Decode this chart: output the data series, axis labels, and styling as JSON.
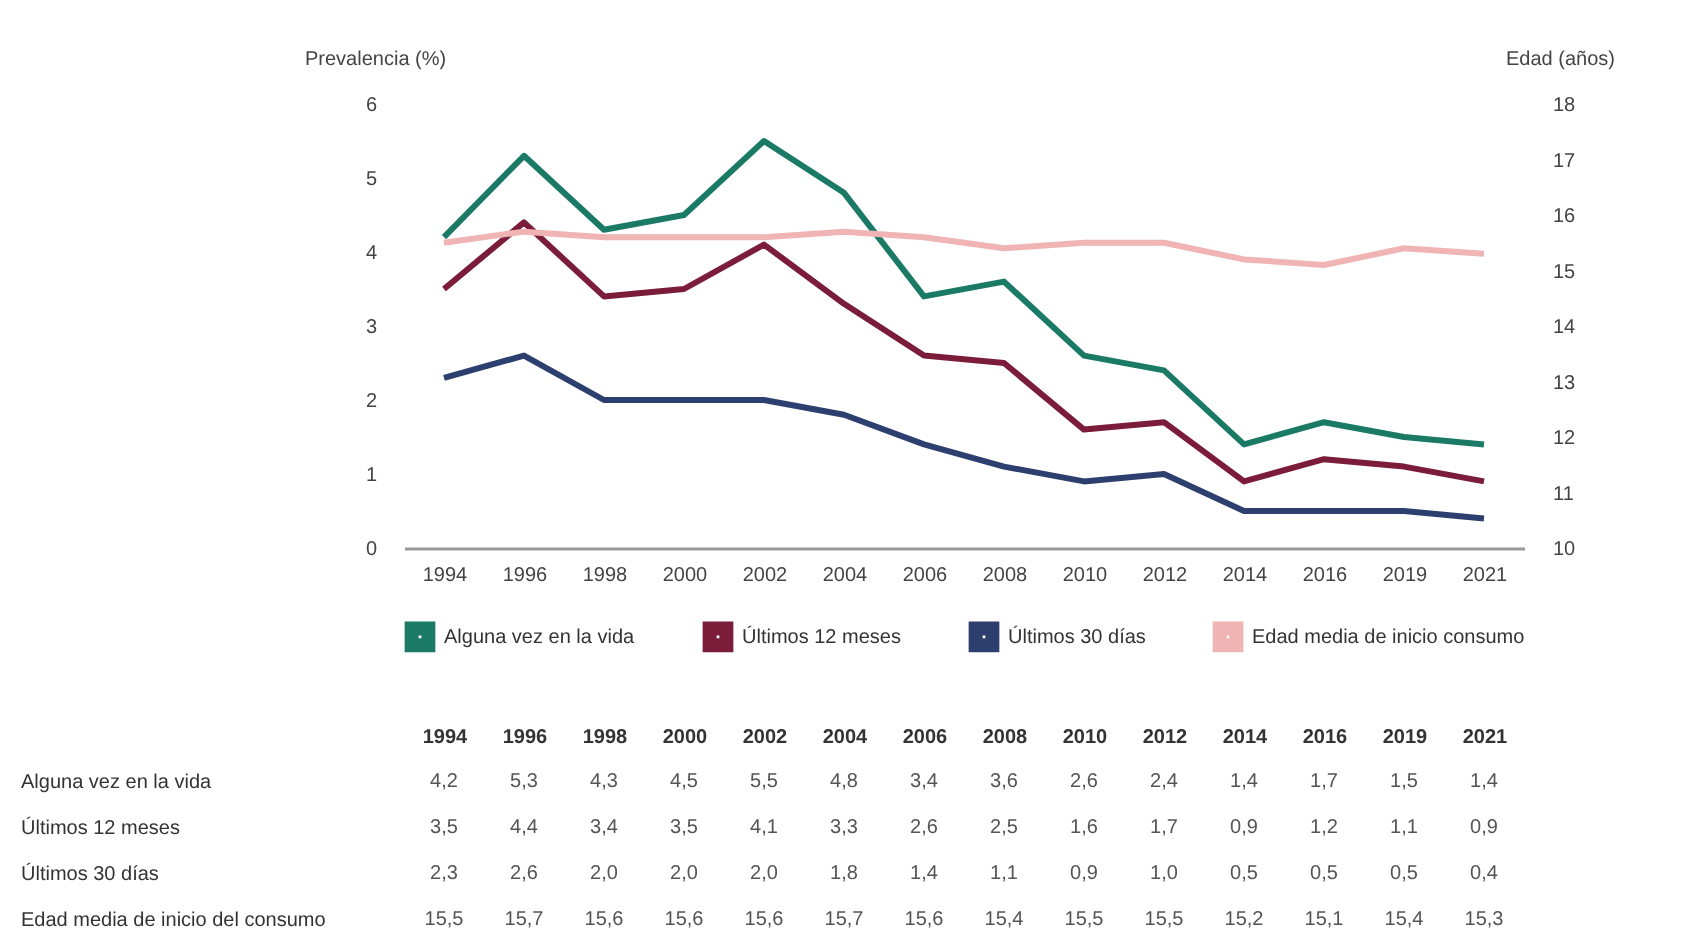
{
  "chart_data": {
    "type": "line",
    "ylabel": "Prevalencia (%)",
    "y2label": "Edad (años)",
    "categories": [
      "1994",
      "1996",
      "1998",
      "2000",
      "2002",
      "2004",
      "2006",
      "2008",
      "2010",
      "2012",
      "2014",
      "2016",
      "2019",
      "2021"
    ],
    "ylim": [
      0,
      6
    ],
    "yticks": [
      0,
      1,
      2,
      3,
      4,
      5,
      6
    ],
    "y2lim": [
      10,
      18
    ],
    "y2ticks": [
      10,
      11,
      12,
      13,
      14,
      15,
      16,
      17,
      18
    ],
    "grid": false,
    "legend": "bottom",
    "marker": "none",
    "line_style": "solid",
    "annotations": [
      "Edad media de inicio del  consumo"
    ],
    "series": [
      {
        "name": "Alguna vez en la vida",
        "color": "#1b7a66",
        "values": [
          4.2,
          5.3,
          4.3,
          4.5,
          5.5,
          4.8,
          3.4,
          3.6,
          2.6,
          2.4,
          1.4,
          1.7,
          1.5,
          1.4
        ],
        "value_labels": [
          "4,2",
          "5,3",
          "4,3",
          "4,5",
          "5,5",
          "4,8",
          "3,4",
          "3,6",
          "2,6",
          "2,4",
          "1,4",
          "1,7",
          "1,5",
          "1,4"
        ]
      },
      {
        "name": "Últimos 12 meses",
        "color": "#7a1c3a",
        "values": [
          3.5,
          4.4,
          3.4,
          3.5,
          4.1,
          3.3,
          2.6,
          2.5,
          1.6,
          1.7,
          0.9,
          1.2,
          1.1,
          0.9
        ],
        "value_labels": [
          "3,5",
          "4,4",
          "3,4",
          "3,5",
          "4,1",
          "3,3",
          "2,6",
          "2,5",
          "1,6",
          "1,7",
          "0,9",
          "1,2",
          "1,1",
          "0,9"
        ]
      },
      {
        "name": "Últimos 30 días",
        "color": "#2c3f6e",
        "values": [
          2.3,
          2.6,
          2.0,
          2.0,
          2.0,
          1.8,
          1.4,
          1.1,
          0.9,
          1.0,
          0.5,
          0.5,
          0.5,
          0.4
        ],
        "value_labels": [
          "2,3",
          "2,6",
          "2,0",
          "2,0",
          "2,0",
          "1,8",
          "1,4",
          "1,1",
          "0,9",
          "1,0",
          "0,5",
          "0,5",
          "0,5",
          "0,4"
        ]
      },
      {
        "name": "Edad media de inicio consumo",
        "color": "#f0b4b4",
        "axis": "y2",
        "values": [
          15.5,
          15.7,
          15.6,
          15.6,
          15.6,
          15.7,
          15.6,
          15.4,
          15.5,
          15.5,
          15.2,
          15.1,
          15.4,
          15.3
        ],
        "value_labels": [
          "15,5",
          "15,7",
          "15,6",
          "15,6",
          "15,6",
          "15,7",
          "15,6",
          "15,4",
          "15,5",
          "15,5",
          "15,2",
          "15,1",
          "15,4",
          "15,3"
        ]
      }
    ]
  }
}
